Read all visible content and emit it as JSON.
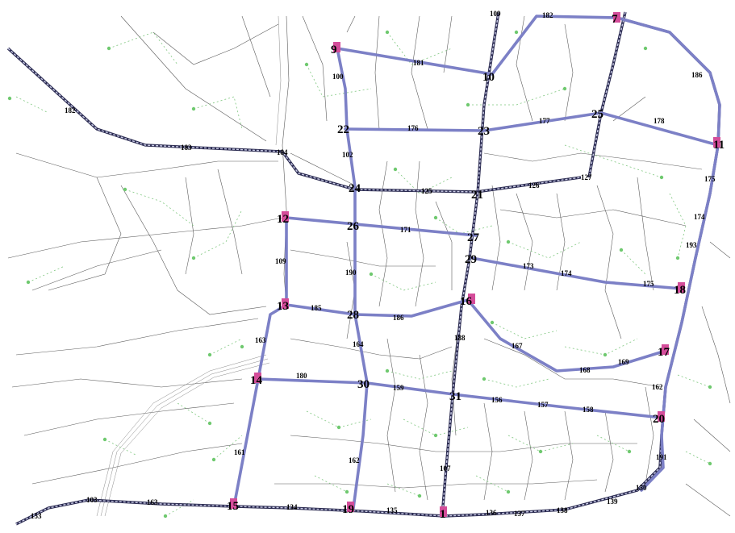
{
  "colors": {
    "route": "#7c80c6",
    "rail": "#2a2a50",
    "node_marker": "#d44d9a",
    "centroid": "#6fc96f",
    "street": "#5c5c5c"
  },
  "nodes": [
    {
      "id": "1",
      "label": "1"
    },
    {
      "id": "7",
      "label": "7"
    },
    {
      "id": "9",
      "label": "9"
    },
    {
      "id": "10",
      "label": "10"
    },
    {
      "id": "11",
      "label": "11"
    },
    {
      "id": "12",
      "label": "12"
    },
    {
      "id": "13",
      "label": "13"
    },
    {
      "id": "14",
      "label": "14"
    },
    {
      "id": "15",
      "label": "15"
    },
    {
      "id": "16",
      "label": "16"
    },
    {
      "id": "17",
      "label": "17"
    },
    {
      "id": "18",
      "label": "18"
    },
    {
      "id": "19",
      "label": "19"
    },
    {
      "id": "20",
      "label": "20"
    },
    {
      "id": "21",
      "label": "21"
    },
    {
      "id": "22",
      "label": "22"
    },
    {
      "id": "23",
      "label": "23"
    },
    {
      "id": "24",
      "label": "24"
    },
    {
      "id": "25",
      "label": "25"
    },
    {
      "id": "26",
      "label": "26"
    },
    {
      "id": "27",
      "label": "27"
    },
    {
      "id": "28",
      "label": "28"
    },
    {
      "id": "29",
      "label": "29"
    },
    {
      "id": "30",
      "label": "30"
    },
    {
      "id": "31",
      "label": "31"
    }
  ],
  "link_labels": [
    "109",
    "182",
    "181",
    "100",
    "186",
    "182",
    "184",
    "176",
    "177",
    "178",
    "183",
    "102",
    "175",
    "125",
    "126",
    "127",
    "174",
    "171",
    "193",
    "173",
    "174",
    "175",
    "109",
    "190",
    "185",
    "186",
    "188",
    "163",
    "164",
    "167",
    "168",
    "169",
    "180",
    "159",
    "156",
    "157",
    "158",
    "162",
    "161",
    "162",
    "107",
    "191",
    "150",
    "103",
    "163",
    "153",
    "134",
    "135",
    "136",
    "137",
    "138",
    "139"
  ]
}
